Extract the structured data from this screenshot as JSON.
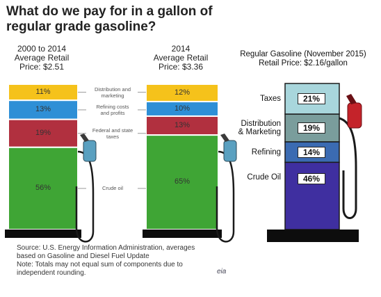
{
  "title": "What do we pay for in a gallon of regular grade gasoline?",
  "colors": {
    "distribution": "#f5c21b",
    "refining": "#2e8fd6",
    "taxes": "#b1303f",
    "crude": "#3fa535",
    "r_taxes": "#a8d6dc",
    "r_distribution": "#7a9d9c",
    "r_refining": "#3b6bb2",
    "r_crude": "#3f2fa0",
    "base": "#0d0d0d",
    "nozzle": "#5aa0c0",
    "r_nozzle": "#c4232a"
  },
  "chart_data": [
    {
      "type": "bar",
      "title": "2000 to 2014 Average Retail Price: $2.51",
      "title_lines": [
        "2000 to 2014",
        "Average Retail",
        "Price: $2.51"
      ],
      "categories": [
        "Distribution and marketing",
        "Refining costs and profits",
        "Federal and state taxes",
        "Crude oil"
      ],
      "values": [
        11,
        13,
        19,
        56
      ],
      "labels": [
        "11%",
        "13%",
        "19%",
        "56%"
      ]
    },
    {
      "type": "bar",
      "title": "2014 Average Retail Price: $3.36",
      "title_lines": [
        "2014",
        "Average Retail",
        "Price: $3.36"
      ],
      "categories": [
        "Distribution and marketing",
        "Refining costs and profits",
        "Federal and state taxes",
        "Crude oil"
      ],
      "values": [
        12,
        10,
        13,
        65
      ],
      "labels": [
        "12%",
        "10%",
        "13%",
        "65%"
      ]
    },
    {
      "type": "bar",
      "title": "Regular Gasoline (November 2015) Retail Price: $2.16/gallon",
      "title_lines": [
        "Regular Gasoline (November 2015)",
        "Retail Price: $2.16/gallon"
      ],
      "categories": [
        "Taxes",
        "Distribution & Marketing",
        "Refining",
        "Crude Oil"
      ],
      "values": [
        21,
        19,
        14,
        46
      ],
      "labels": [
        "21%",
        "19%",
        "14%",
        "46%"
      ]
    }
  ],
  "middle_labels": [
    [
      "Distribution and",
      "marketing"
    ],
    [
      "Refining costs",
      "and profits"
    ],
    [
      "Federal and state",
      "taxes"
    ],
    [
      "Crude oil"
    ]
  ],
  "right_categories": [
    [
      "Taxes"
    ],
    [
      "Distribution",
      "& Marketing"
    ],
    [
      "Refining"
    ],
    [
      "Crude Oil"
    ]
  ],
  "source_lines": [
    "Source: U.S. Energy Information Administration, averages",
    "based on Gasoline and Diesel Fuel Update",
    "Note: Totals may not equal sum of components due to",
    "independent rounding."
  ],
  "logo_text": "eia"
}
